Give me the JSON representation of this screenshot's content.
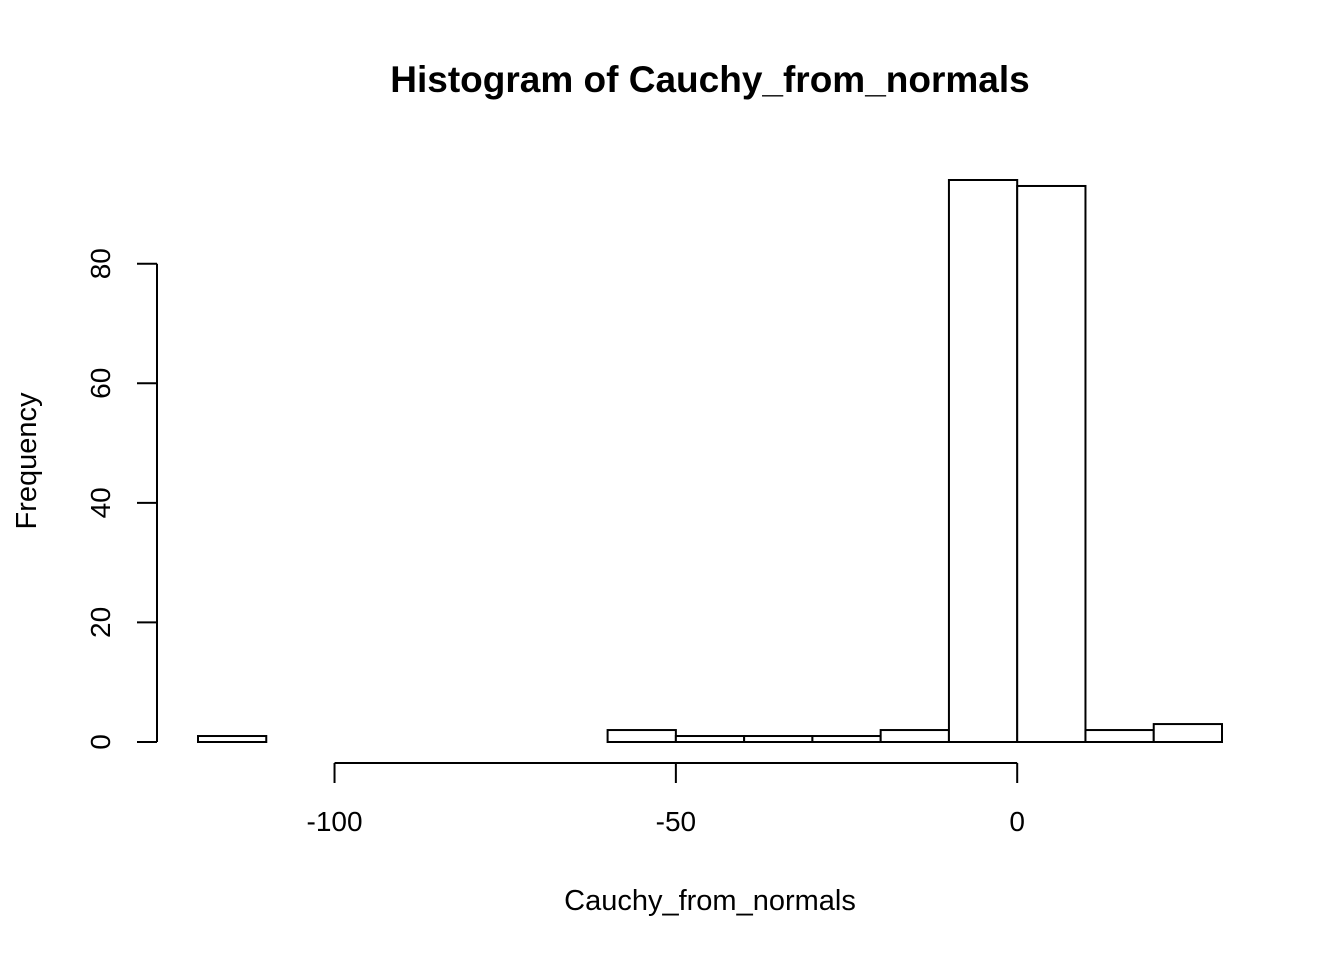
{
  "chart_data": {
    "type": "bar",
    "title": "Histogram of Cauchy_from_normals",
    "xlabel": "Cauchy_from_normals",
    "ylabel": "Frequency",
    "bins": [
      {
        "x0": -120,
        "x1": -110,
        "count": 1
      },
      {
        "x0": -110,
        "x1": -100,
        "count": 0
      },
      {
        "x0": -100,
        "x1": -90,
        "count": 0
      },
      {
        "x0": -90,
        "x1": -80,
        "count": 0
      },
      {
        "x0": -80,
        "x1": -70,
        "count": 0
      },
      {
        "x0": -70,
        "x1": -60,
        "count": 0
      },
      {
        "x0": -60,
        "x1": -50,
        "count": 2
      },
      {
        "x0": -50,
        "x1": -40,
        "count": 1
      },
      {
        "x0": -40,
        "x1": -30,
        "count": 1
      },
      {
        "x0": -30,
        "x1": -20,
        "count": 1
      },
      {
        "x0": -20,
        "x1": -10,
        "count": 2
      },
      {
        "x0": -10,
        "x1": 0,
        "count": 94
      },
      {
        "x0": 0,
        "x1": 10,
        "count": 93
      },
      {
        "x0": 10,
        "x1": 20,
        "count": 2
      },
      {
        "x0": 20,
        "x1": 30,
        "count": 3
      }
    ],
    "xlim": [
      -120,
      30
    ],
    "ylim": [
      0,
      94
    ],
    "x_ticks": [
      -100,
      -50,
      0
    ],
    "y_ticks": [
      0,
      20,
      40,
      60,
      80
    ],
    "grid": false,
    "legend": "none",
    "bar_fill": "#ffffff",
    "bar_stroke": "#000000"
  }
}
